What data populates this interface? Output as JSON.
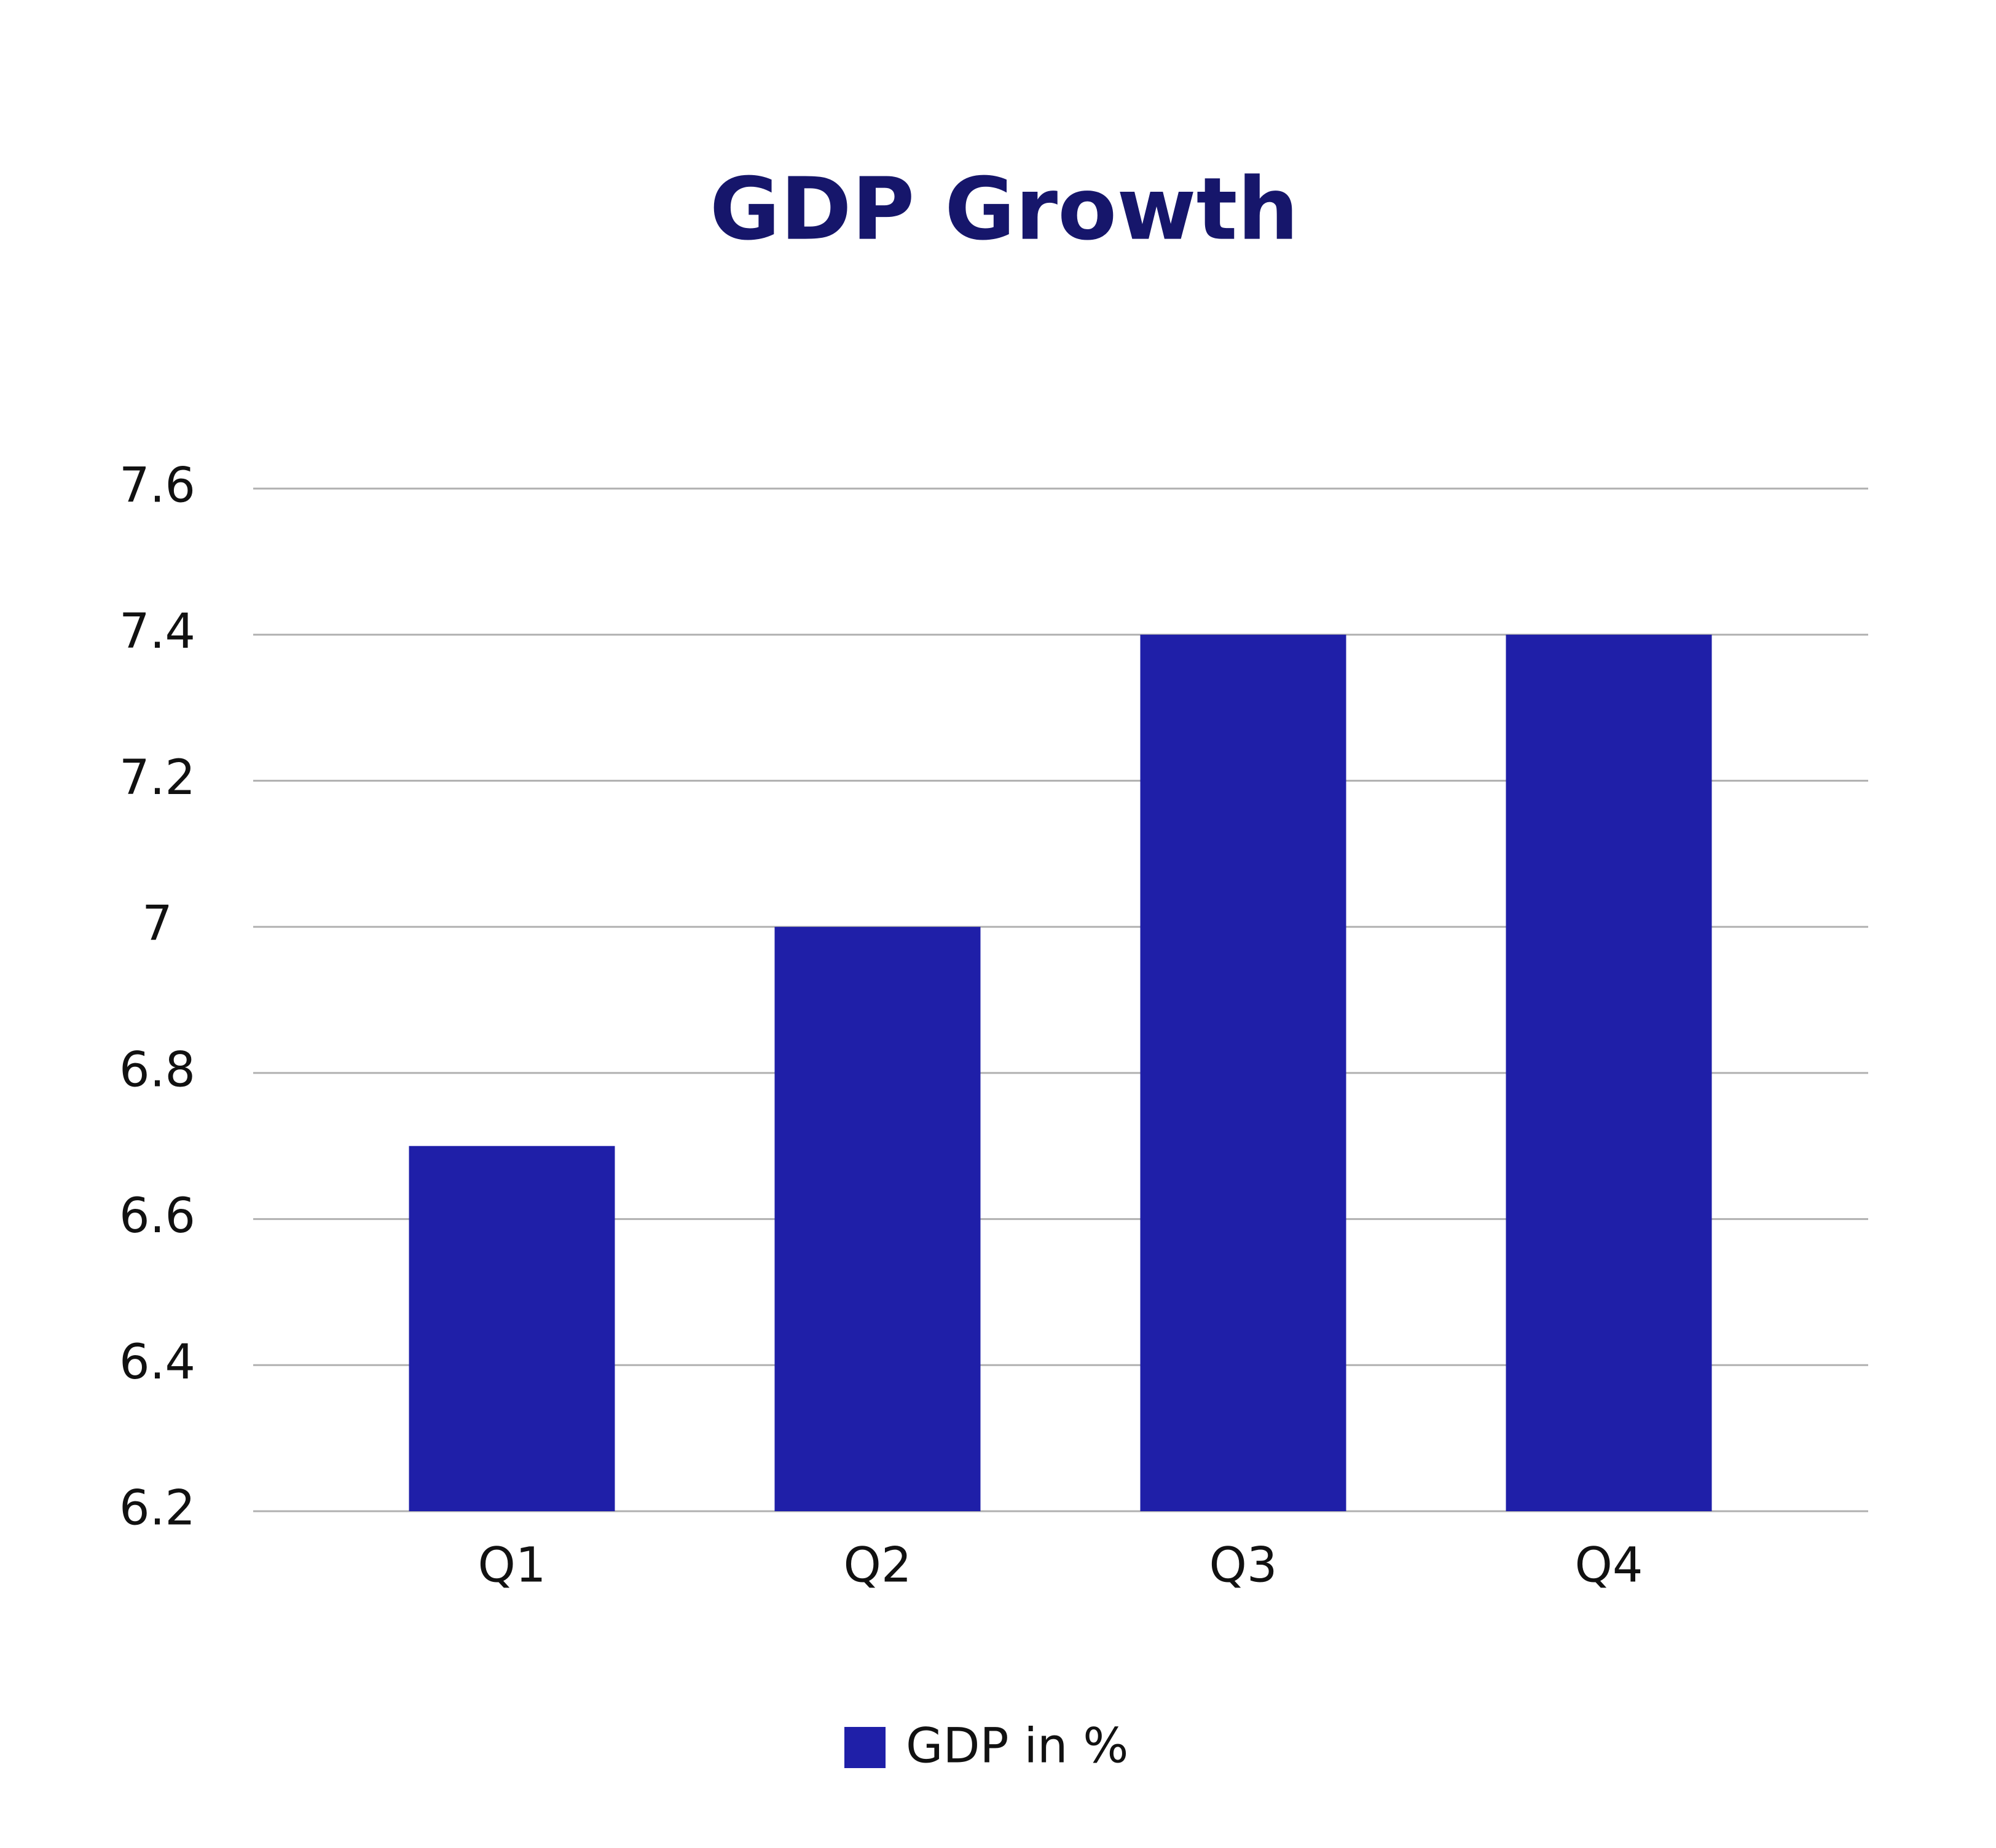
{
  "chart_data": {
    "type": "bar",
    "title": "GDP Growth",
    "categories": [
      "Q1",
      "Q2",
      "Q3",
      "Q4"
    ],
    "series": [
      {
        "name": "GDP in %",
        "color": "#1f1fa8",
        "values": [
          6.7,
          7,
          7.4,
          7.4
        ]
      }
    ],
    "ylim": [
      6.2,
      7.6
    ],
    "yticks": [
      6.2,
      6.4,
      6.6,
      6.8,
      7,
      7.2,
      7.4,
      7.6
    ],
    "grid": true,
    "legend": "bottom"
  }
}
